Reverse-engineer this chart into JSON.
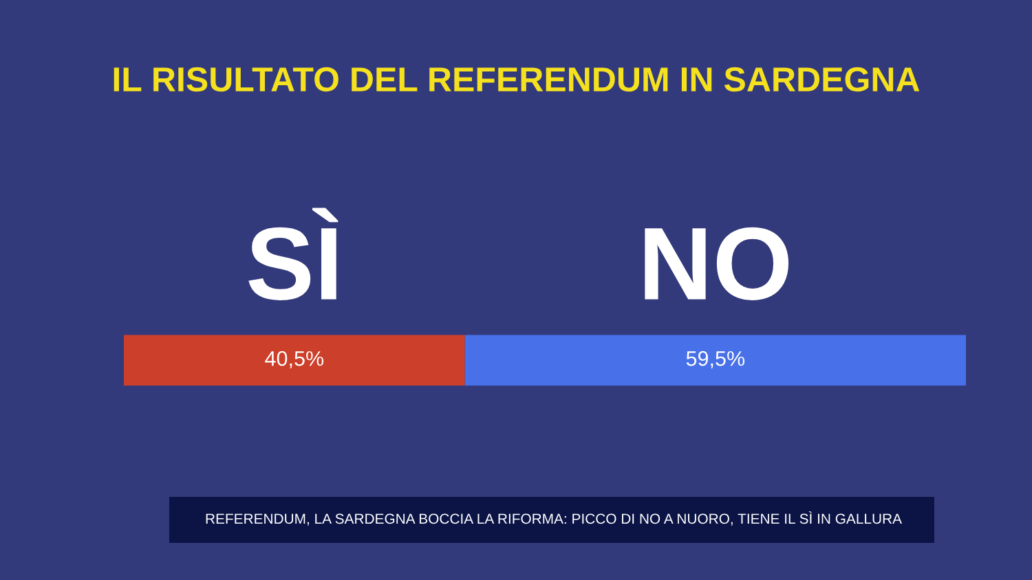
{
  "chart_data": {
    "type": "bar",
    "title": "IL RISULTATO DEL REFERENDUM IN SARDEGNA",
    "orientation": "horizontal",
    "stacked": true,
    "categories": [
      null
    ],
    "series": [
      {
        "name": "SÌ",
        "color": "#cc3f2a",
        "values": [
          40.5
        ],
        "value_labels": [
          "40,5%"
        ]
      },
      {
        "name": "NO",
        "color": "#4870e8",
        "values": [
          59.5
        ],
        "value_labels": [
          "59,5%"
        ]
      }
    ],
    "xlim": [
      0,
      100
    ],
    "tick_labels": false,
    "annotations": [
      "REFERENDUM, LA SARDEGNA BOCCIA LA RIFORMA: PICCO DI NO A NUORO, TIENE IL SÌ IN GALLURA"
    ]
  }
}
